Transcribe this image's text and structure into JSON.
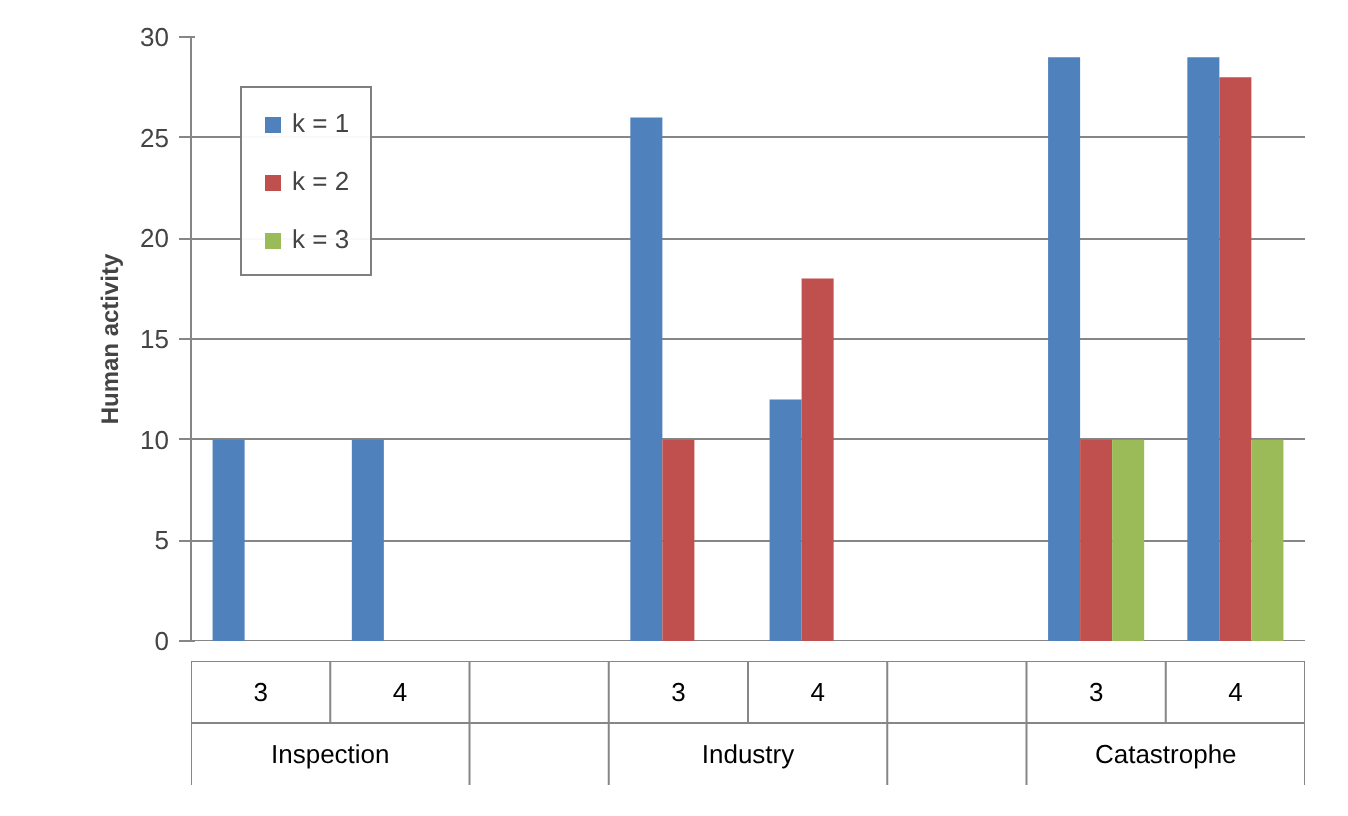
{
  "chart_data": {
    "type": "bar",
    "ylabel": "Human activity",
    "categories": [
      "3",
      "4",
      null,
      "3",
      "4",
      null,
      "3",
      "4"
    ],
    "annotations": [
      "Inspection",
      "Industry",
      "Catastrophe"
    ],
    "series": [
      {
        "name": "k = 1",
        "color": "#4f81bd",
        "values": [
          10,
          10,
          null,
          26,
          12,
          null,
          29,
          29
        ]
      },
      {
        "name": "k = 2",
        "color": "#c0504d",
        "values": [
          null,
          null,
          null,
          10,
          18,
          null,
          10,
          28
        ]
      },
      {
        "name": "k = 3",
        "color": "#9bbb59",
        "values": [
          null,
          null,
          null,
          null,
          null,
          null,
          10,
          10
        ]
      }
    ],
    "ylim": [
      0,
      30
    ],
    "yticks": [
      0,
      5,
      10,
      15,
      20,
      25,
      30
    ],
    "grid": "y",
    "legend": "top left"
  }
}
